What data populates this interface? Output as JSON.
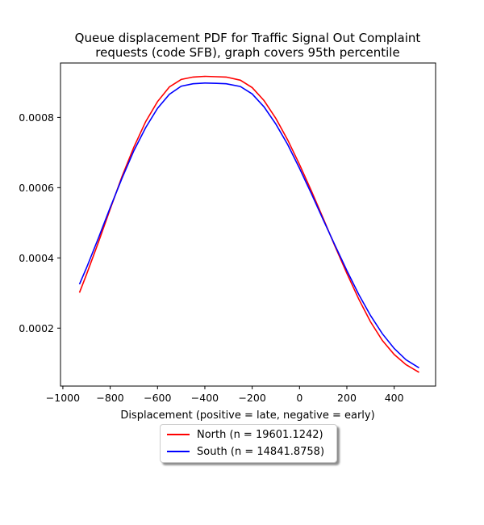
{
  "chart_data": {
    "type": "line",
    "title": [
      "Queue displacement PDF for Traffic Signal Out Complaint",
      "requests (code SFB), graph covers 95th percentile"
    ],
    "xlabel": "Displacement (positive = late, negative = early)",
    "ylabel": "",
    "xlim": [
      -1010,
      575
    ],
    "ylim": [
      3.5e-05,
      0.000955
    ],
    "x_ticks": [
      -1000,
      -800,
      -600,
      -400,
      -200,
      0,
      200,
      400
    ],
    "x_tick_labels": [
      "−1000",
      "−800",
      "−600",
      "−400",
      "−200",
      "0",
      "200",
      "400"
    ],
    "y_ticks": [
      0.0002,
      0.0004,
      0.0006,
      0.0008
    ],
    "y_tick_labels": [
      "0.0002",
      "0.0004",
      "0.0006",
      "0.0008"
    ],
    "grid": false,
    "legend_position": "below",
    "series": [
      {
        "name": "North (n = 19601.1242)",
        "color": "#ff0000",
        "x": [
          -930,
          -900,
          -850,
          -800,
          -750,
          -700,
          -650,
          -600,
          -550,
          -500,
          -450,
          -400,
          -350,
          -310,
          -250,
          -200,
          -150,
          -100,
          -50,
          0,
          50,
          100,
          150,
          200,
          250,
          300,
          350,
          400,
          450,
          505
        ],
        "y": [
          0.000301,
          0.000353,
          0.000444,
          0.000539,
          0.000632,
          0.000715,
          0.000788,
          0.000845,
          0.000887,
          0.000908,
          0.000915,
          0.000917,
          0.000916,
          0.000915,
          0.000906,
          0.000885,
          0.000848,
          0.000797,
          0.000736,
          0.000666,
          0.000591,
          0.000513,
          0.000433,
          0.000356,
          0.000283,
          0.000218,
          0.000165,
          0.000125,
          9.6e-05,
          7.4e-05
        ]
      },
      {
        "name": "South (n = 14841.8758)",
        "color": "#0000ff",
        "x": [
          -930,
          -900,
          -850,
          -800,
          -750,
          -700,
          -650,
          -600,
          -550,
          -500,
          -450,
          -400,
          -350,
          -310,
          -250,
          -200,
          -150,
          -100,
          -50,
          0,
          50,
          100,
          150,
          200,
          250,
          300,
          350,
          400,
          450,
          505
        ],
        "y": [
          0.000325,
          0.000372,
          0.000456,
          0.000543,
          0.000627,
          0.000705,
          0.000771,
          0.000826,
          0.000866,
          0.000889,
          0.000896,
          0.000898,
          0.000897,
          0.000896,
          0.000888,
          0.000867,
          0.00083,
          0.000781,
          0.000723,
          0.000655,
          0.000583,
          0.000509,
          0.000436,
          0.000364,
          0.000296,
          0.000236,
          0.000184,
          0.000142,
          0.00011,
          8.7e-05
        ]
      }
    ]
  }
}
